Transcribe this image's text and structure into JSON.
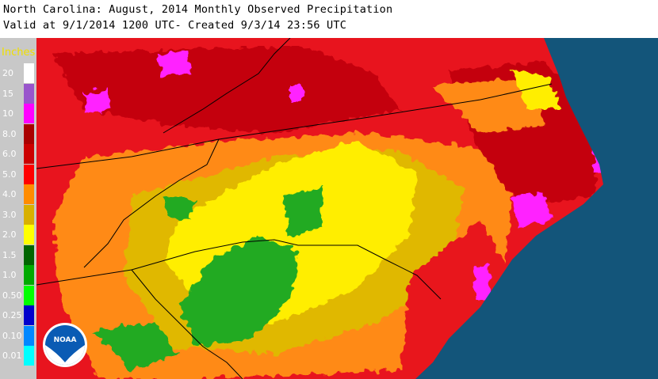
{
  "header": {
    "line1": "North Carolina: August, 2014 Monthly Observed Precipitation",
    "line2": "Valid at 9/1/2014 1200 UTC- Created 9/3/14 23:56 UTC"
  },
  "legend": {
    "title": "Inches",
    "items": [
      {
        "label": "20",
        "color": "#ffffff"
      },
      {
        "label": "15",
        "color": "#9955cc"
      },
      {
        "label": "10",
        "color": "#ff00ff"
      },
      {
        "label": "8.0",
        "color": "#aa0000"
      },
      {
        "label": "6.0",
        "color": "#cc0000"
      },
      {
        "label": "5.0",
        "color": "#ff0000"
      },
      {
        "label": "4.0",
        "color": "#ff8c00"
      },
      {
        "label": "3.0",
        "color": "#d8b000"
      },
      {
        "label": "2.0",
        "color": "#ffff00"
      },
      {
        "label": "1.5",
        "color": "#006600"
      },
      {
        "label": "1.0",
        "color": "#00aa00"
      },
      {
        "label": "0.50",
        "color": "#00ff00"
      },
      {
        "label": "0.25",
        "color": "#0000cc"
      },
      {
        "label": "0.10",
        "color": "#0088ff"
      },
      {
        "label": "0.01",
        "color": "#00ffff"
      }
    ]
  },
  "logo": {
    "text": "NOAA"
  },
  "colors": {
    "ocean": "#13557a",
    "red": "#e8141e",
    "darkred": "#c40010",
    "orange": "#ff8a18",
    "gold": "#e0b800",
    "yellow": "#ffee00",
    "green": "#22aa22",
    "magenta": "#ff22ff"
  }
}
